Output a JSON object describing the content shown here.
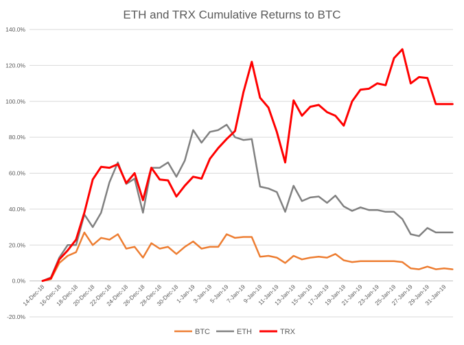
{
  "chart_data": {
    "type": "line",
    "title": "ETH and TRX Cumulative Returns to BTC",
    "xlabel": "",
    "ylabel": "",
    "ylim": [
      -20,
      140
    ],
    "yticks": [
      -20,
      0,
      20,
      40,
      60,
      80,
      100,
      120,
      140
    ],
    "ytick_labels": [
      "-20.0%",
      "0.0%",
      "20.0%",
      "40.0%",
      "60.0%",
      "80.0%",
      "100.0%",
      "120.0%",
      "140.0%"
    ],
    "grid": true,
    "legend_position": "bottom",
    "x": [
      "14-Dec-18",
      "15-Dec-18",
      "16-Dec-18",
      "17-Dec-18",
      "18-Dec-18",
      "19-Dec-18",
      "20-Dec-18",
      "21-Dec-18",
      "22-Dec-18",
      "23-Dec-18",
      "24-Dec-18",
      "25-Dec-18",
      "26-Dec-18",
      "27-Dec-18",
      "28-Dec-18",
      "29-Dec-18",
      "30-Dec-18",
      "31-Dec-18",
      "1-Jan-19",
      "2-Jan-19",
      "3-Jan-19",
      "4-Jan-19",
      "5-Jan-19",
      "6-Jan-19",
      "7-Jan-19",
      "8-Jan-19",
      "9-Jan-19",
      "10-Jan-19",
      "11-Jan-19",
      "12-Jan-19",
      "13-Jan-19",
      "14-Jan-19",
      "15-Jan-19",
      "16-Jan-19",
      "17-Jan-19",
      "18-Jan-19",
      "19-Jan-19",
      "20-Jan-19",
      "21-Jan-19",
      "22-Jan-19",
      "23-Jan-19",
      "24-Jan-19",
      "25-Jan-19",
      "26-Jan-19",
      "27-Jan-19",
      "28-Jan-19",
      "29-Jan-19",
      "30-Jan-19",
      "31-Jan-19",
      "1-Feb-19"
    ],
    "xtick_labels": [
      "14-Dec-18",
      "16-Dec-18",
      "18-Dec-18",
      "20-Dec-18",
      "22-Dec-18",
      "24-Dec-18",
      "26-Dec-18",
      "28-Dec-18",
      "30-Dec-18",
      "1-Jan-19",
      "3-Jan-19",
      "5-Jan-19",
      "7-Jan-19",
      "9-Jan-19",
      "11-Jan-19",
      "13-Jan-19",
      "15-Jan-19",
      "17-Jan-19",
      "19-Jan-19",
      "21-Jan-19",
      "23-Jan-19",
      "25-Jan-19",
      "27-Jan-19",
      "29-Jan-19",
      "31-Jan-19"
    ],
    "series": [
      {
        "name": "BTC",
        "color": "#ed7d31",
        "values": [
          0,
          1,
          10,
          14,
          16,
          27,
          20,
          24,
          23,
          26,
          18,
          19,
          13,
          21,
          18,
          19,
          15,
          19,
          22,
          18,
          19,
          19,
          26,
          24,
          24.5,
          24.5,
          13.5,
          14,
          13,
          10,
          14,
          12,
          13,
          13.5,
          13,
          15,
          11.5,
          10.5,
          11,
          11,
          11,
          11,
          11,
          10.5,
          7,
          6.5,
          8,
          6.5,
          7,
          6.5
        ]
      },
      {
        "name": "ETH",
        "color": "#808080",
        "values": [
          0,
          2,
          13,
          20,
          20,
          37,
          30,
          38,
          55,
          66,
          54,
          57,
          38,
          63,
          63,
          66,
          58,
          67,
          84,
          77,
          83,
          84,
          87,
          80,
          78.5,
          79,
          52.5,
          51.5,
          49.5,
          38.5,
          53,
          44.5,
          46.5,
          47,
          43.5,
          47.5,
          41.5,
          39,
          41,
          39.5,
          39.5,
          38.5,
          38.5,
          34.5,
          26,
          25,
          29.5,
          27,
          27,
          27
        ]
      },
      {
        "name": "TRX",
        "color": "#ff0000",
        "values": [
          0,
          1.5,
          12,
          17,
          23,
          38,
          56.5,
          63.5,
          63,
          65,
          54.5,
          60,
          45,
          63,
          56.5,
          56,
          47,
          53,
          58,
          57,
          68,
          74,
          79,
          83.5,
          105,
          122,
          102,
          96.5,
          83,
          66,
          100.5,
          92,
          97,
          98,
          94,
          92,
          86.5,
          100,
          106.5,
          107,
          110,
          109,
          124,
          129,
          110,
          113.5,
          113,
          98.5,
          98.5,
          98.5
        ]
      }
    ]
  }
}
